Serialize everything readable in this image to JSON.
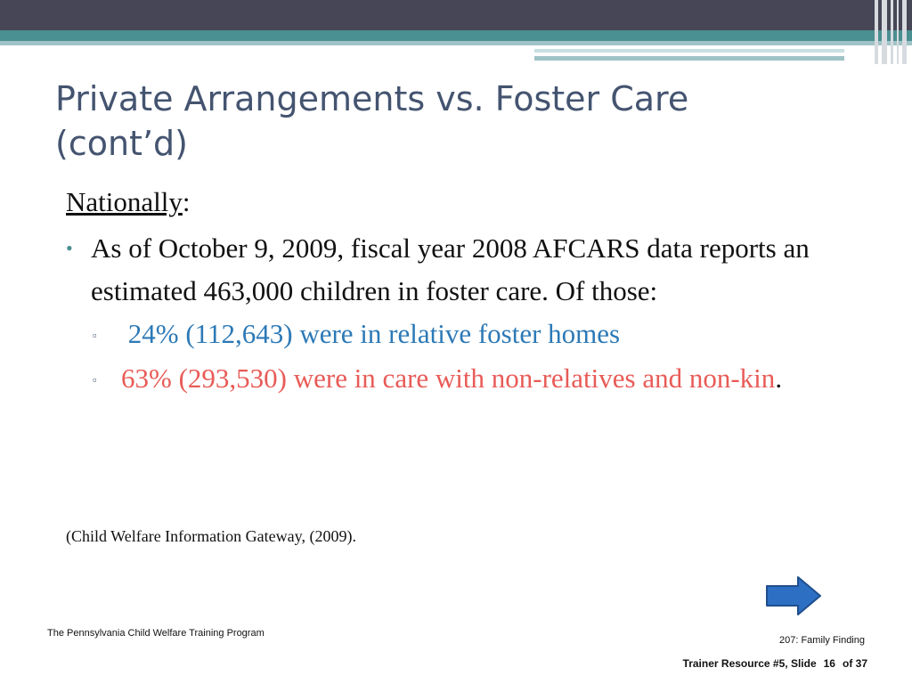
{
  "slide": {
    "title": "Private Arrangements vs. Foster Care (cont’d)",
    "heading": "Nationally",
    "heading_suffix": ":",
    "bullet": "As of October 9, 2009, fiscal year 2008 AFCARS data reports an estimated 463,000 children in foster care.  Of those:",
    "sub_bullets": [
      {
        "text": " 24% (112,643) were in relative foster homes",
        "color": "#2c79b6"
      },
      {
        "text": "63% (293,530) were in care with non-relatives and non-kin",
        "suffix": ".",
        "color": "#e85b57"
      }
    ],
    "citation": "(Child Welfare Information Gateway,  (2009).",
    "next_arrow_icon": "right-arrow-icon"
  },
  "footer": {
    "left": "The Pennsylvania Child Welfare Training Program",
    "right": "207: Family Finding",
    "resource": "Trainer Resource #5, Slide",
    "slide_number": "16",
    "total": "of 37"
  },
  "colors": {
    "header_dark": "#464656",
    "header_teal": "#4a8f91",
    "title": "#445470",
    "arrow_fill": "#2d6fc3"
  }
}
